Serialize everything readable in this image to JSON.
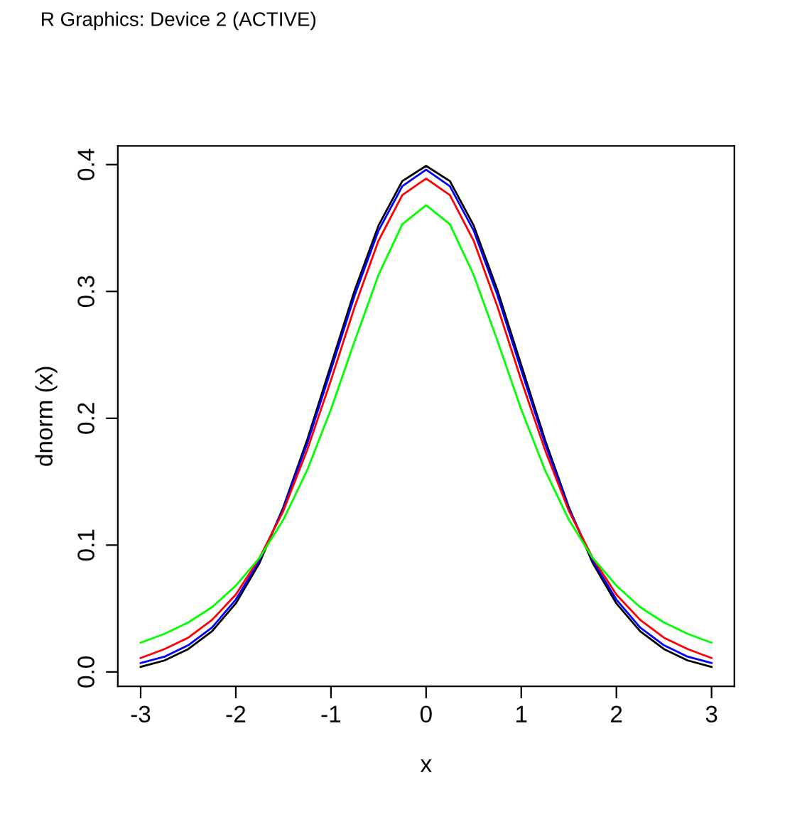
{
  "chart_data": {
    "type": "line",
    "title": "R Graphics: Device 2 (ACTIVE)",
    "xlabel": "x",
    "ylabel": "dnorm (x)",
    "x": [
      -3,
      -2.75,
      -2.5,
      -2.25,
      -2,
      -1.75,
      -1.5,
      -1.25,
      -1,
      -0.75,
      -0.5,
      -0.25,
      0,
      0.25,
      0.5,
      0.75,
      1,
      1.25,
      1.5,
      1.75,
      2,
      2.25,
      2.5,
      2.75,
      3
    ],
    "series": [
      {
        "color": "#000000",
        "values": [
          0.004,
          0.009,
          0.018,
          0.032,
          0.054,
          0.086,
          0.13,
          0.183,
          0.242,
          0.301,
          0.352,
          0.387,
          0.399,
          0.387,
          0.352,
          0.301,
          0.242,
          0.183,
          0.13,
          0.086,
          0.054,
          0.032,
          0.018,
          0.009,
          0.004
        ]
      },
      {
        "color": "#0000ff",
        "values": [
          0.007,
          0.012,
          0.021,
          0.035,
          0.057,
          0.088,
          0.129,
          0.18,
          0.238,
          0.297,
          0.348,
          0.383,
          0.396,
          0.383,
          0.348,
          0.297,
          0.238,
          0.18,
          0.129,
          0.088,
          0.057,
          0.035,
          0.021,
          0.012,
          0.007
        ]
      },
      {
        "color": "#ff0000",
        "values": [
          0.011,
          0.018,
          0.027,
          0.041,
          0.061,
          0.09,
          0.127,
          0.175,
          0.23,
          0.288,
          0.34,
          0.376,
          0.389,
          0.376,
          0.34,
          0.288,
          0.23,
          0.175,
          0.127,
          0.09,
          0.061,
          0.041,
          0.027,
          0.018,
          0.011
        ]
      },
      {
        "color": "#00ff00",
        "values": [
          0.023,
          0.03,
          0.039,
          0.051,
          0.068,
          0.09,
          0.12,
          0.159,
          0.207,
          0.261,
          0.313,
          0.353,
          0.368,
          0.353,
          0.313,
          0.261,
          0.207,
          0.159,
          0.12,
          0.09,
          0.068,
          0.051,
          0.039,
          0.03,
          0.023
        ]
      }
    ],
    "xlim": [
      -3.24,
      3.24
    ],
    "ylim": [
      -0.0114,
      0.4147
    ],
    "xticks": [
      -3,
      -2,
      -1,
      0,
      1,
      2,
      3
    ],
    "yticks": [
      {
        "value": 0,
        "label": "0.0"
      },
      0.1,
      0.2,
      0.3,
      0.4
    ],
    "grid": false,
    "legend": false,
    "marker": "none",
    "line_style": "solid"
  }
}
